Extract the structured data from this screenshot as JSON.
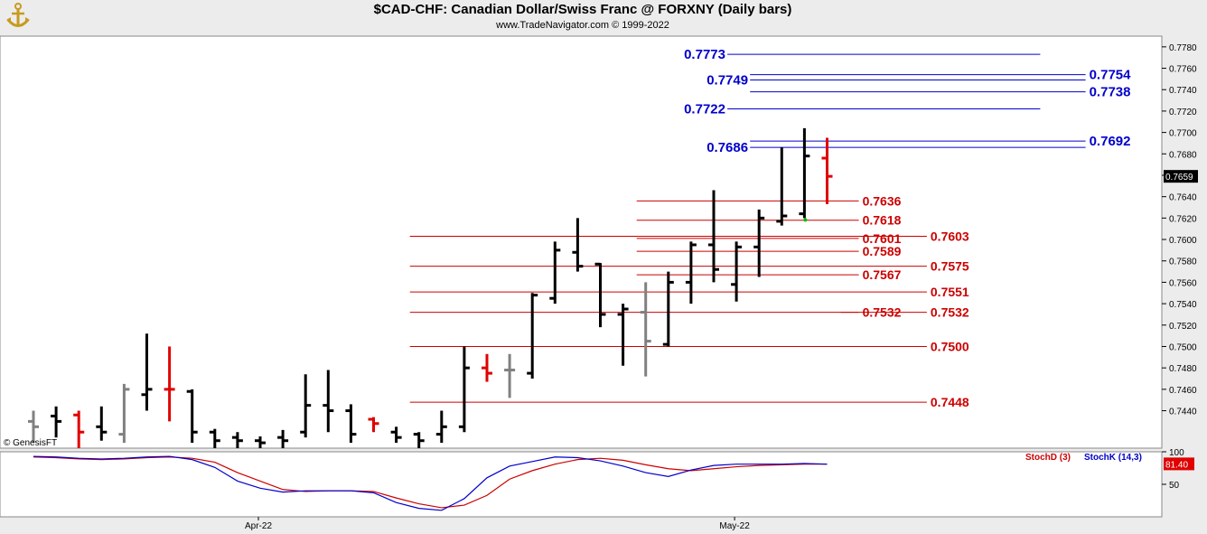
{
  "header": {
    "title": "$CAD-CHF:  Canadian Dollar/Swiss Franc @ FORXNY  (Daily bars)",
    "subtitle": "www.TradeNavigator.com © 1999-2022"
  },
  "watermark": "© GenesisFT",
  "colors": {
    "up": "#000000",
    "down": "#e00000",
    "neutral": "#808080",
    "blue_level": "#0000cc",
    "red_level": "#cc0000",
    "stochD": "#cc0000",
    "stochK": "#0000cc"
  },
  "chart_data": [
    {
      "type": "ohlc",
      "ylim": [
        0.7405,
        0.779
      ],
      "y_ticks": [
        "0.7780",
        "0.7760",
        "0.7740",
        "0.7720",
        "0.7700",
        "0.7680",
        "0.7660",
        "0.7640",
        "0.7620",
        "0.7600",
        "0.7580",
        "0.7560",
        "0.7540",
        "0.7520",
        "0.7500",
        "0.7480",
        "0.7460",
        "0.7440"
      ],
      "x_labels": [
        {
          "label": "Apr-22",
          "index": 10
        },
        {
          "label": "May-22",
          "index": 31
        }
      ],
      "last_price": "0.7659",
      "bars": [
        {
          "o": 0.743,
          "h": 0.744,
          "l": 0.741,
          "c": 0.7425,
          "dir": "neutral"
        },
        {
          "o": 0.7435,
          "h": 0.7444,
          "l": 0.7415,
          "c": 0.743,
          "dir": "up"
        },
        {
          "o": 0.7436,
          "h": 0.744,
          "l": 0.7405,
          "c": 0.742,
          "dir": "down"
        },
        {
          "o": 0.7425,
          "h": 0.7444,
          "l": 0.7412,
          "c": 0.742,
          "dir": "up"
        },
        {
          "o": 0.7418,
          "h": 0.7465,
          "l": 0.741,
          "c": 0.746,
          "dir": "neutral"
        },
        {
          "o": 0.7455,
          "h": 0.7512,
          "l": 0.744,
          "c": 0.746,
          "dir": "up"
        },
        {
          "o": 0.746,
          "h": 0.75,
          "l": 0.743,
          "c": 0.746,
          "dir": "down"
        },
        {
          "o": 0.7458,
          "h": 0.746,
          "l": 0.741,
          "c": 0.742,
          "dir": "up"
        },
        {
          "o": 0.742,
          "h": 0.7423,
          "l": 0.7405,
          "c": 0.7412,
          "dir": "up"
        },
        {
          "o": 0.7415,
          "h": 0.742,
          "l": 0.7405,
          "c": 0.7412,
          "dir": "up"
        },
        {
          "o": 0.7412,
          "h": 0.7416,
          "l": 0.7405,
          "c": 0.741,
          "dir": "up"
        },
        {
          "o": 0.7415,
          "h": 0.7422,
          "l": 0.7405,
          "c": 0.7412,
          "dir": "up"
        },
        {
          "o": 0.742,
          "h": 0.7474,
          "l": 0.7415,
          "c": 0.7445,
          "dir": "up"
        },
        {
          "o": 0.7445,
          "h": 0.7478,
          "l": 0.742,
          "c": 0.744,
          "dir": "up"
        },
        {
          "o": 0.744,
          "h": 0.7446,
          "l": 0.741,
          "c": 0.7418,
          "dir": "up"
        },
        {
          "o": 0.7432,
          "h": 0.7434,
          "l": 0.742,
          "c": 0.7428,
          "dir": "down"
        },
        {
          "o": 0.742,
          "h": 0.7425,
          "l": 0.741,
          "c": 0.7415,
          "dir": "up"
        },
        {
          "o": 0.7418,
          "h": 0.742,
          "l": 0.7405,
          "c": 0.7412,
          "dir": "up"
        },
        {
          "o": 0.7418,
          "h": 0.744,
          "l": 0.741,
          "c": 0.7425,
          "dir": "up"
        },
        {
          "o": 0.7425,
          "h": 0.75,
          "l": 0.742,
          "c": 0.748,
          "dir": "up"
        },
        {
          "o": 0.748,
          "h": 0.7493,
          "l": 0.7467,
          "c": 0.7475,
          "dir": "down"
        },
        {
          "o": 0.7478,
          "h": 0.7493,
          "l": 0.7452,
          "c": 0.7478,
          "dir": "neutral"
        },
        {
          "o": 0.7475,
          "h": 0.755,
          "l": 0.747,
          "c": 0.7548,
          "dir": "up"
        },
        {
          "o": 0.7545,
          "h": 0.7598,
          "l": 0.754,
          "c": 0.759,
          "dir": "up"
        },
        {
          "o": 0.7588,
          "h": 0.762,
          "l": 0.757,
          "c": 0.7575,
          "dir": "up"
        },
        {
          "o": 0.7577,
          "h": 0.7578,
          "l": 0.7518,
          "c": 0.753,
          "dir": "up"
        },
        {
          "o": 0.753,
          "h": 0.754,
          "l": 0.7482,
          "c": 0.7535,
          "dir": "up"
        },
        {
          "o": 0.7532,
          "h": 0.756,
          "l": 0.7472,
          "c": 0.7505,
          "dir": "neutral"
        },
        {
          "o": 0.7502,
          "h": 0.757,
          "l": 0.75,
          "c": 0.756,
          "dir": "up"
        },
        {
          "o": 0.756,
          "h": 0.7598,
          "l": 0.754,
          "c": 0.7595,
          "dir": "up"
        },
        {
          "o": 0.7595,
          "h": 0.7646,
          "l": 0.756,
          "c": 0.7572,
          "dir": "up"
        },
        {
          "o": 0.7558,
          "h": 0.7598,
          "l": 0.7542,
          "c": 0.7593,
          "dir": "up"
        },
        {
          "o": 0.7593,
          "h": 0.7628,
          "l": 0.7565,
          "c": 0.762,
          "dir": "up"
        },
        {
          "o": 0.7617,
          "h": 0.7686,
          "l": 0.7613,
          "c": 0.7622,
          "dir": "up"
        },
        {
          "o": 0.7624,
          "h": 0.7704,
          "l": 0.762,
          "c": 0.7678,
          "dir": "up"
        },
        {
          "o": 0.7676,
          "h": 0.7695,
          "l": 0.7633,
          "c": 0.7659,
          "dir": "down"
        }
      ],
      "levels": [
        {
          "value": 0.7773,
          "label": "0.7773",
          "color": "blue",
          "from": 31,
          "to": 44,
          "label_side": "left",
          "line_dx": 0
        },
        {
          "value": 0.7754,
          "label": "0.7754",
          "color": "blue",
          "from": 32,
          "to": 46,
          "label_side": "right",
          "line_dx": 0
        },
        {
          "value": 0.7749,
          "label": "0.7749",
          "color": "blue",
          "from": 32,
          "to": 46,
          "label_side": "left",
          "line_dx": 0
        },
        {
          "value": 0.7738,
          "label": "0.7738",
          "color": "blue",
          "from": 32,
          "to": 46,
          "label_side": "right",
          "line_dx": 0
        },
        {
          "value": 0.7722,
          "label": "0.7722",
          "color": "blue",
          "from": 31,
          "to": 44,
          "label_side": "left",
          "line_dx": 0
        },
        {
          "value": 0.7692,
          "label": "0.7692",
          "color": "blue",
          "from": 32,
          "to": 46,
          "label_side": "right",
          "line_dx": 0
        },
        {
          "value": 0.7686,
          "label": "0.7686",
          "color": "blue",
          "from": 32,
          "to": 46,
          "label_side": "left",
          "line_dx": 0
        },
        {
          "value": 0.7636,
          "label": "0.7636",
          "color": "red",
          "from": 27,
          "to": 36,
          "label_side": "right",
          "line_dx": 0
        },
        {
          "value": 0.7618,
          "label": "0.7618",
          "color": "red",
          "from": 27,
          "to": 36,
          "label_side": "right",
          "line_dx": 0
        },
        {
          "value": 0.7603,
          "label": "0.7603",
          "color": "red",
          "from": 17,
          "to": 39,
          "label_side": "right",
          "line_dx": 0
        },
        {
          "value": 0.7601,
          "label": "0.7601",
          "color": "red",
          "from": 27,
          "to": 36,
          "label_side": "right",
          "line_dx": 0
        },
        {
          "value": 0.7589,
          "label": "0.7589",
          "color": "red",
          "from": 27,
          "to": 36,
          "label_side": "right",
          "line_dx": 0
        },
        {
          "value": 0.7575,
          "label": "0.7575",
          "color": "red",
          "from": 17,
          "to": 39,
          "label_side": "right",
          "line_dx": 0
        },
        {
          "value": 0.7567,
          "label": "0.7567",
          "color": "red",
          "from": 27,
          "to": 36,
          "label_side": "right",
          "line_dx": 0
        },
        {
          "value": 0.7551,
          "label": "0.7551",
          "color": "red",
          "from": 17,
          "to": 39,
          "label_side": "right",
          "line_dx": 0
        },
        {
          "value": 0.7532,
          "label": "0.7532",
          "color": "red",
          "from": 17,
          "to": 36,
          "label_side": "right",
          "line_dx": 0
        },
        {
          "value": 0.7532,
          "label": "0.7532",
          "color": "red",
          "from": 36,
          "to": 39,
          "label_side": "right",
          "line_dx": 0
        },
        {
          "value": 0.75,
          "label": "0.7500",
          "color": "red",
          "from": 17,
          "to": 39,
          "label_side": "right",
          "line_dx": 0
        },
        {
          "value": 0.7448,
          "label": "0.7448",
          "color": "red",
          "from": 17,
          "to": 39,
          "label_side": "right",
          "line_dx": 0
        }
      ]
    },
    {
      "type": "line",
      "title": "",
      "ylim": [
        0,
        100
      ],
      "y_ticks": [
        "100",
        "50"
      ],
      "last_value": "81.40",
      "series": [
        {
          "name": "StochD (3)",
          "color": "red",
          "values": [
            92,
            91,
            89,
            88,
            89,
            91,
            92,
            90,
            84,
            68,
            55,
            42,
            39,
            40,
            40,
            39,
            29,
            20,
            14,
            18,
            33,
            58,
            71,
            81,
            88,
            90,
            87,
            80,
            74,
            71,
            74,
            77,
            79,
            80,
            81,
            81
          ]
        },
        {
          "name": "StochK (14,3)",
          "color": "blue",
          "values": [
            93,
            92,
            90,
            89,
            90,
            92,
            93,
            88,
            76,
            55,
            44,
            38,
            40,
            40,
            40,
            37,
            22,
            13,
            10,
            28,
            60,
            78,
            85,
            92,
            91,
            86,
            78,
            68,
            62,
            72,
            79,
            81,
            81,
            81,
            82,
            81
          ]
        }
      ]
    }
  ]
}
